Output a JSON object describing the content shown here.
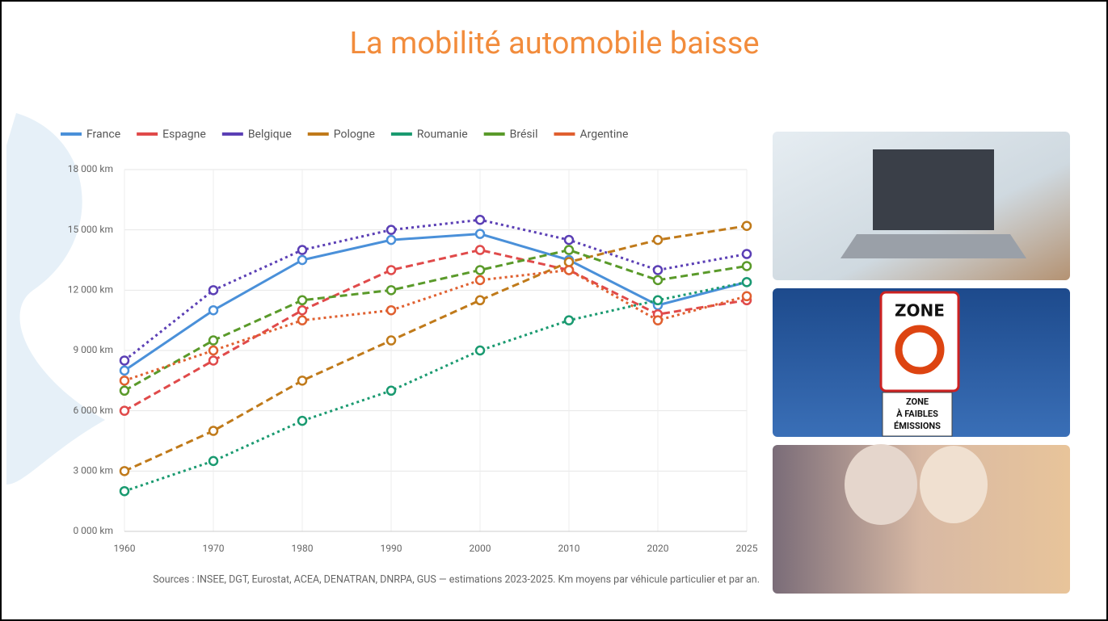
{
  "chart_data": {
    "type": "line",
    "title": "La mobilité automobile baisse",
    "note": "Sources : INSEE, DGT, Eurostat, ACEA, DENATRAN, DNRPA, GUS — estimations 2023-2025. Km moyens par véhicule particulier et par an.",
    "categories": [
      "1960",
      "1970",
      "1980",
      "1990",
      "2000",
      "2010",
      "2020",
      "2025"
    ],
    "ylim": [
      0,
      18000
    ],
    "yticks": [
      {
        "value": 0,
        "label": "0 000 km"
      },
      {
        "value": 3000,
        "label": "3 000 km"
      },
      {
        "value": 6000,
        "label": "6 000 km"
      },
      {
        "value": 9000,
        "label": "9 000 km"
      },
      {
        "value": 12000,
        "label": "12 000 km"
      },
      {
        "value": 15000,
        "label": "15 000 km"
      },
      {
        "value": 18000,
        "label": "18 000 km"
      }
    ],
    "grid": true,
    "legend": "top",
    "series": [
      {
        "name": "France",
        "color": "#4a90d9",
        "dash": "solid",
        "values": [
          8000,
          11000,
          13500,
          14500,
          14800,
          13500,
          11250,
          12400
        ]
      },
      {
        "name": "Espagne",
        "color": "#e04a4a",
        "dash": "dashed",
        "values": [
          6000,
          8500,
          11000,
          13000,
          14000,
          13000,
          10800,
          11500
        ]
      },
      {
        "name": "Belgique",
        "color": "#5b3fb5",
        "dash": "dotted",
        "values": [
          8500,
          12000,
          14000,
          15000,
          15500,
          14500,
          13000,
          13800
        ]
      },
      {
        "name": "Pologne",
        "color": "#c07a1a",
        "dash": "dashed",
        "values": [
          3000,
          5000,
          7500,
          9500,
          11500,
          13400,
          14500,
          15200
        ]
      },
      {
        "name": "Roumanie",
        "color": "#1a9a70",
        "dash": "dotted",
        "values": [
          2000,
          3500,
          5500,
          7000,
          9000,
          10500,
          11500,
          12400
        ]
      },
      {
        "name": "Brésil",
        "color": "#5a9a2a",
        "dash": "dashed",
        "values": [
          7000,
          9500,
          11500,
          12000,
          13000,
          14000,
          12500,
          13200
        ]
      },
      {
        "name": "Argentine",
        "color": "#e06030",
        "dash": "dotted",
        "values": [
          7500,
          9000,
          10500,
          11000,
          12500,
          13000,
          10500,
          11700
        ]
      }
    ]
  },
  "images": {
    "sign_top": "ZONE",
    "sign_bottom": [
      "ZONE",
      "À FAIBLES",
      "ÉMISSIONS"
    ]
  }
}
